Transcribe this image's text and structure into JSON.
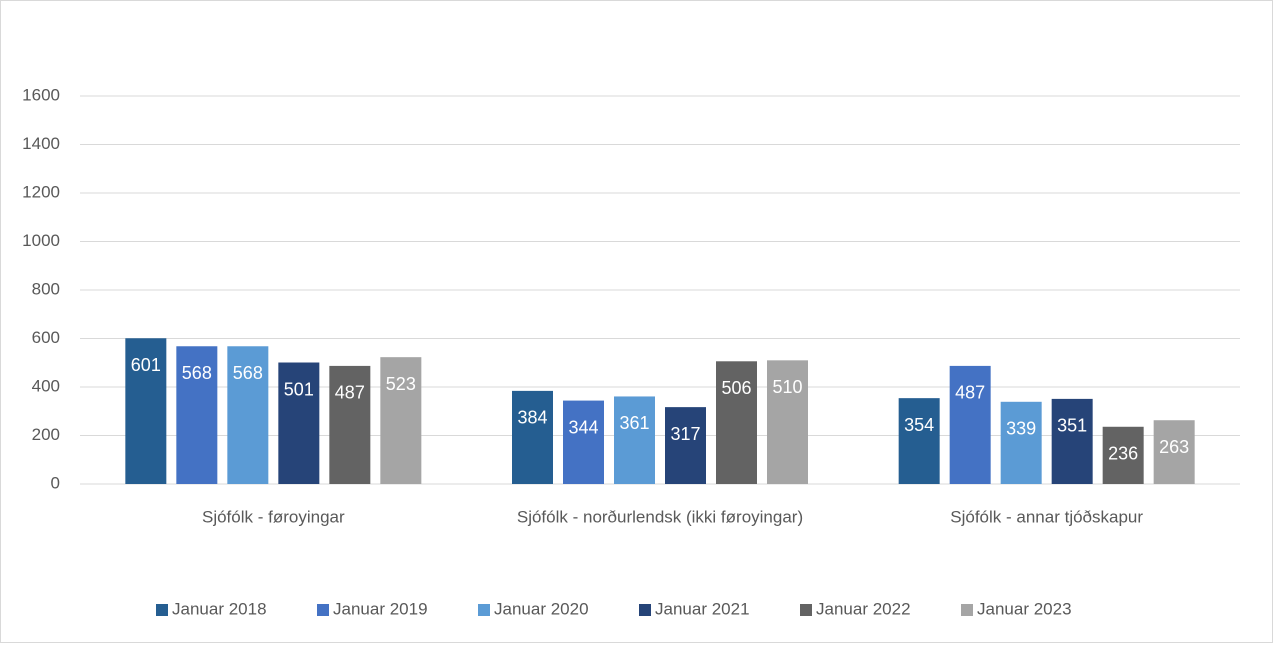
{
  "chart_data": {
    "type": "bar",
    "categories": [
      "Sjófólk - føroyingar",
      "Sjófólk - norðurlendsk (ikki føroyingar)",
      "Sjófólk - annar tjóðskapur"
    ],
    "series": [
      {
        "name": "Januar 2018",
        "color": "#255e91",
        "values": [
          601,
          384,
          354
        ]
      },
      {
        "name": "Januar 2019",
        "color": "#4472c4",
        "values": [
          568,
          344,
          487
        ]
      },
      {
        "name": "Januar 2020",
        "color": "#5b9bd5",
        "values": [
          568,
          361,
          339
        ]
      },
      {
        "name": "Januar 2021",
        "color": "#264478",
        "values": [
          501,
          317,
          351
        ]
      },
      {
        "name": "Januar 2022",
        "color": "#636363",
        "values": [
          487,
          506,
          236
        ]
      },
      {
        "name": "Januar 2023",
        "color": "#a5a5a5",
        "values": [
          523,
          510,
          263
        ]
      }
    ],
    "ylim": [
      0,
      1600
    ],
    "yticks": [
      0,
      200,
      400,
      600,
      800,
      1000,
      1200,
      1400,
      1600
    ],
    "grid": true,
    "legend": "bottom",
    "data_labels": true
  }
}
